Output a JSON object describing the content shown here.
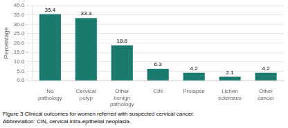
{
  "chart_data": {
    "type": "bar",
    "categories": [
      "No\npathology",
      "Cervical\npolyp",
      "Other\nbenign\npathology",
      "CIN",
      "Prolapse",
      "Lichen\nsclerosus",
      "Other\ncancer"
    ],
    "values": [
      35.4,
      33.3,
      18.8,
      6.3,
      4.2,
      2.1,
      4.2
    ],
    "color": "#1a7a6e",
    "ylabel": "Percentage",
    "ylim": [
      0,
      40.0
    ],
    "yticks": [
      {
        "value": 0,
        "label": "0.0"
      },
      {
        "value": 5,
        "label": "5.0"
      },
      {
        "value": 10,
        "label": "10.0"
      },
      {
        "value": 15,
        "label": "15.0"
      },
      {
        "value": 20,
        "label": "20.0"
      },
      {
        "value": 25,
        "label": "25.0"
      },
      {
        "value": 30,
        "label": "30.0"
      },
      {
        "value": 35,
        "label": "35.0"
      },
      {
        "value": 40,
        "label": "40.0"
      }
    ],
    "grid": true,
    "data_labels": true,
    "annotations": [
      "Figure 3 Clinical outcomes for women referred with suspected cervical cancer.",
      "Abbreviation: CIN, cervical intra-epithelial neoplasia."
    ]
  }
}
